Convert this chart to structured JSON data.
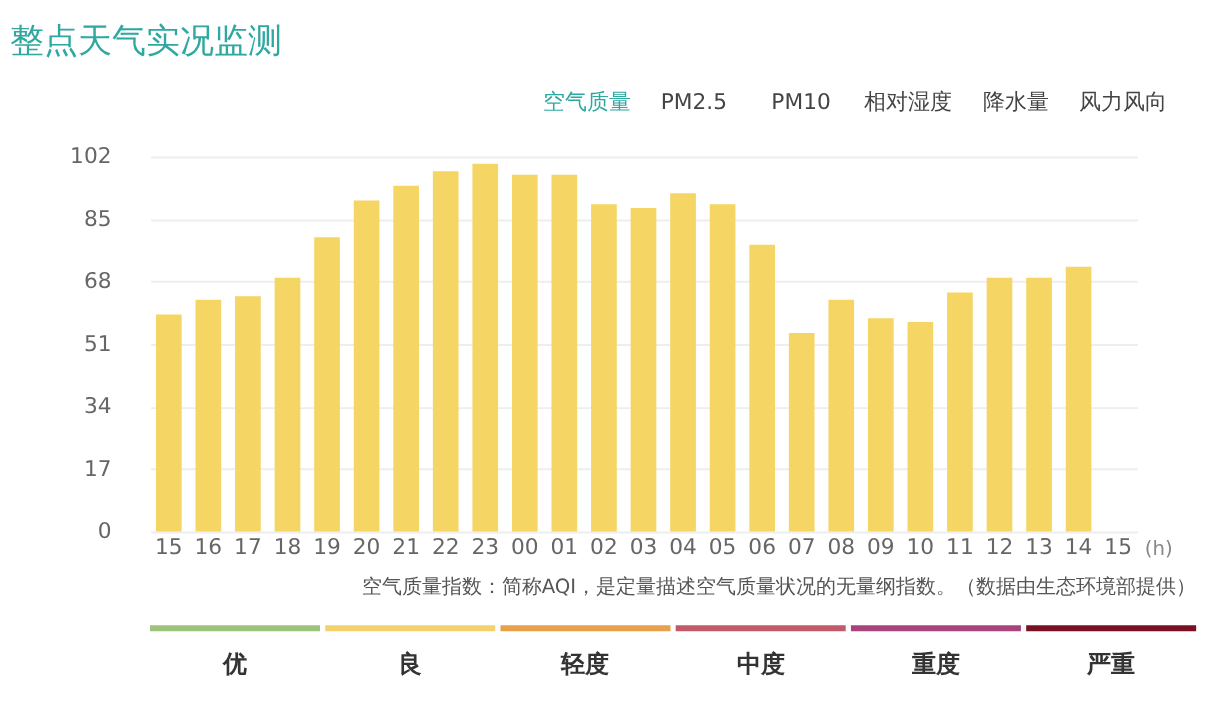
{
  "chart_data": [
    {
      "type": "bar",
      "title": "整点天气实况监测",
      "subtitle": "空气质量　PM2.5　PM10　相对湿度　降水量　风力风向",
      "xlabel": "(h)",
      "categories": [
        "15",
        "16",
        "17",
        "18",
        "19",
        "20",
        "21",
        "22",
        "23",
        "00",
        "01",
        "02",
        "03",
        "04",
        "05",
        "06",
        "07",
        "08",
        "09",
        "10",
        "11",
        "12",
        "13",
        "14",
        "15"
      ],
      "values": [
        59,
        63,
        64,
        69,
        80,
        90,
        94,
        98,
        100,
        97,
        97,
        89,
        88,
        92,
        89,
        78,
        54,
        63,
        58,
        57,
        65,
        69,
        69,
        72,
        null
      ],
      "color": "#f5d563",
      "ylim": [
        0,
        102
      ],
      "yticks": [
        0,
        17,
        34,
        51,
        68,
        85,
        102
      ],
      "grid": "y",
      "annotations": [
        "空气质量指数：简称AQI，是定量描述空气质量状况的无量纲指数。（数据由生态环境部提供）"
      ]
    },
    {
      "type": "other",
      "categories": [
        "优",
        "良",
        "轻度",
        "中度",
        "重度",
        "严重"
      ],
      "colors": [
        "#9cc47a",
        "#f2d36b",
        "#e8a04a",
        "#c25a6a",
        "#a8437e",
        "#7a1024"
      ]
    }
  ]
}
